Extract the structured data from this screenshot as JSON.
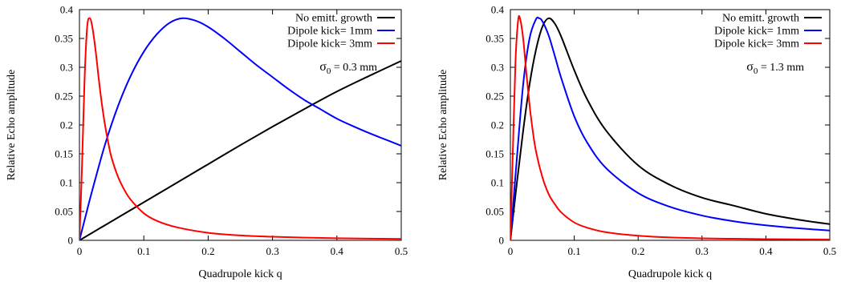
{
  "chart_data": [
    {
      "type": "line",
      "title": "",
      "xlabel": "Quadrupole kick q",
      "ylabel": "Relative Echo amplitude",
      "xlim": [
        0,
        0.5
      ],
      "ylim": [
        0,
        0.4
      ],
      "xticks": [
        0,
        0.1,
        0.2,
        0.3,
        0.4,
        0.5
      ],
      "xtick_labels": [
        "0",
        "0.1",
        "0.2",
        "0.3",
        "0.4",
        "0.5"
      ],
      "yticks": [
        0,
        0.05,
        0.1,
        0.15,
        0.2,
        0.25,
        0.3,
        0.35,
        0.4
      ],
      "ytick_labels": [
        "0",
        "0.05",
        "0.1",
        "0.15",
        "0.2",
        "0.25",
        "0.3",
        "0.35",
        "0.4"
      ],
      "legend_position": "top-right",
      "grid": false,
      "annotation": {
        "sym": "σ",
        "sub": "0",
        "rest": " = 0.3 mm"
      },
      "series": [
        {
          "name": "No emitt. growth",
          "color": "#000000",
          "x": [
            0,
            0.05,
            0.1,
            0.15,
            0.2,
            0.25,
            0.3,
            0.35,
            0.4,
            0.45,
            0.5
          ],
          "y": [
            0,
            0.033,
            0.066,
            0.099,
            0.132,
            0.165,
            0.197,
            0.228,
            0.258,
            0.285,
            0.311
          ]
        },
        {
          "name": "Dipole kick= 1mm",
          "color": "#0000ff",
          "x": [
            0,
            0.01,
            0.02,
            0.04,
            0.06,
            0.08,
            0.1,
            0.12,
            0.14,
            0.16,
            0.18,
            0.2,
            0.225,
            0.25,
            0.275,
            0.3,
            0.325,
            0.35,
            0.375,
            0.4,
            0.425,
            0.45,
            0.475,
            0.5
          ],
          "y": [
            0,
            0.044,
            0.087,
            0.167,
            0.233,
            0.286,
            0.327,
            0.357,
            0.377,
            0.385,
            0.381,
            0.37,
            0.35,
            0.327,
            0.304,
            0.283,
            0.262,
            0.243,
            0.227,
            0.211,
            0.198,
            0.186,
            0.175,
            0.164
          ]
        },
        {
          "name": "Dipole kick= 3mm",
          "color": "#ff0000",
          "x": [
            0,
            0.004,
            0.008,
            0.012,
            0.016,
            0.02,
            0.025,
            0.03,
            0.035,
            0.04,
            0.045,
            0.05,
            0.06,
            0.07,
            0.08,
            0.1,
            0.12,
            0.15,
            0.2,
            0.25,
            0.3,
            0.35,
            0.4,
            0.45,
            0.5
          ],
          "y": [
            0,
            0.13,
            0.28,
            0.37,
            0.385,
            0.37,
            0.33,
            0.28,
            0.235,
            0.198,
            0.168,
            0.143,
            0.11,
            0.087,
            0.07,
            0.047,
            0.034,
            0.023,
            0.013,
            0.0085,
            0.0062,
            0.0047,
            0.0037,
            0.003,
            0.0025
          ]
        }
      ]
    },
    {
      "type": "line",
      "title": "",
      "xlabel": "Quadrupole kick q",
      "ylabel": "Relative Echo amplitude",
      "xlim": [
        0,
        0.5
      ],
      "ylim": [
        0,
        0.4
      ],
      "xticks": [
        0,
        0.1,
        0.2,
        0.3,
        0.4,
        0.5
      ],
      "xtick_labels": [
        "0",
        "0.1",
        "0.2",
        "0.3",
        "0.4",
        "0.5"
      ],
      "yticks": [
        0,
        0.05,
        0.1,
        0.15,
        0.2,
        0.25,
        0.3,
        0.35,
        0.4
      ],
      "ytick_labels": [
        "0",
        "0.05",
        "0.1",
        "0.15",
        "0.2",
        "0.25",
        "0.3",
        "0.35",
        "0.4"
      ],
      "legend_position": "top-right",
      "grid": false,
      "annotation": {
        "sym": "σ",
        "sub": "0",
        "rest": " = 1.3 mm"
      },
      "series": [
        {
          "name": "No emitt. growth",
          "color": "#000000",
          "x": [
            0,
            0.01,
            0.02,
            0.03,
            0.04,
            0.05,
            0.06,
            0.07,
            0.08,
            0.1,
            0.12,
            0.15,
            0.2,
            0.25,
            0.3,
            0.35,
            0.4,
            0.45,
            0.5
          ],
          "y": [
            0,
            0.098,
            0.19,
            0.27,
            0.33,
            0.37,
            0.385,
            0.375,
            0.352,
            0.295,
            0.245,
            0.19,
            0.13,
            0.096,
            0.074,
            0.06,
            0.046,
            0.036,
            0.028
          ]
        },
        {
          "name": "Dipole kick= 1mm",
          "color": "#0000ff",
          "x": [
            0,
            0.01,
            0.02,
            0.03,
            0.04,
            0.045,
            0.05,
            0.06,
            0.07,
            0.08,
            0.1,
            0.12,
            0.15,
            0.2,
            0.25,
            0.3,
            0.35,
            0.4,
            0.45,
            0.5
          ],
          "y": [
            0,
            0.14,
            0.27,
            0.35,
            0.383,
            0.385,
            0.38,
            0.355,
            0.318,
            0.28,
            0.215,
            0.17,
            0.125,
            0.082,
            0.058,
            0.043,
            0.033,
            0.026,
            0.021,
            0.017
          ]
        },
        {
          "name": "Dipole kick= 3mm",
          "color": "#ff0000",
          "x": [
            0,
            0.004,
            0.008,
            0.012,
            0.015,
            0.02,
            0.025,
            0.03,
            0.035,
            0.04,
            0.05,
            0.06,
            0.07,
            0.08,
            0.1,
            0.12,
            0.15,
            0.2,
            0.25,
            0.3,
            0.35,
            0.4,
            0.45,
            0.5
          ],
          "y": [
            0,
            0.16,
            0.31,
            0.38,
            0.385,
            0.35,
            0.29,
            0.235,
            0.19,
            0.155,
            0.11,
            0.08,
            0.062,
            0.048,
            0.031,
            0.022,
            0.014,
            0.008,
            0.005,
            0.0035,
            0.0027,
            0.0021,
            0.0017,
            0.0014
          ]
        }
      ]
    }
  ]
}
